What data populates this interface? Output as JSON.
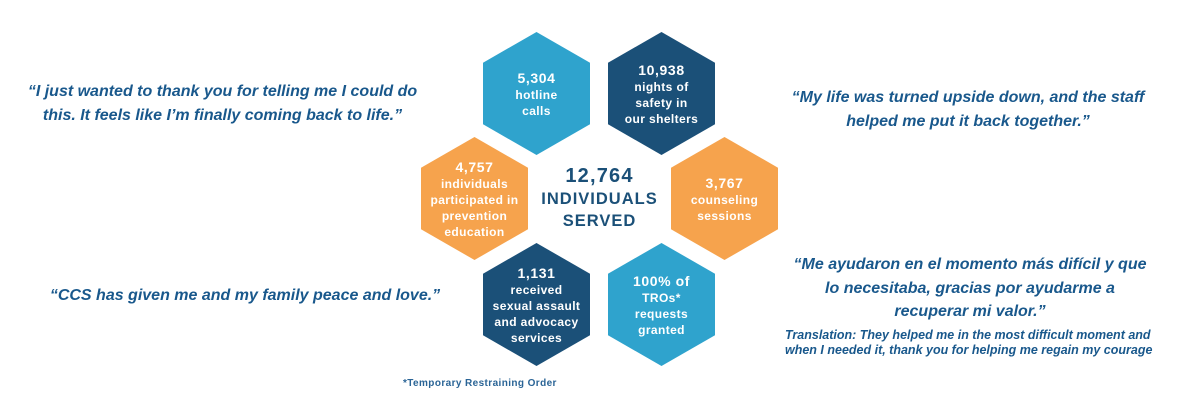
{
  "colors": {
    "background": "#FFFFFF",
    "light_blue": "#2FA3CD",
    "dark_blue": "#1B5078",
    "orange": "#F6A34D",
    "quote_text": "#19588C",
    "center_text": "#1B5078",
    "footnote_text": "#2A6496"
  },
  "center_label": {
    "total": "12,764",
    "lines": [
      "12,764",
      "INDIVIDUALS",
      "SERVED"
    ]
  },
  "hexagons": [
    {
      "name": "hotline-calls",
      "value": "5,304",
      "color": "light_blue",
      "lines": [
        "5,304",
        "hotline",
        "calls"
      ]
    },
    {
      "name": "nights-of-safety",
      "value": "10,938",
      "color": "dark_blue",
      "lines": [
        "10,938",
        "nights of",
        "safety in",
        "our shelters"
      ]
    },
    {
      "name": "prevention-education",
      "value": "4,757",
      "color": "orange",
      "lines": [
        "4,757",
        "individuals",
        "participated in",
        "prevention",
        "education"
      ]
    },
    {
      "name": "counseling-sessions",
      "value": "3,767",
      "color": "orange",
      "lines": [
        "3,767",
        "counseling",
        "sessions"
      ]
    },
    {
      "name": "sexual-assault-advocacy-services",
      "value": "1,131",
      "color": "dark_blue",
      "lines": [
        "1,131",
        "received",
        "sexual assault",
        "and advocacy",
        "services"
      ]
    },
    {
      "name": "tro-requests-granted",
      "value": "100%",
      "color": "light_blue",
      "lines": [
        "100% of",
        "TROs*",
        "requests",
        "granted"
      ]
    }
  ],
  "quotes": [
    {
      "lines": [
        "“I just wanted to thank you for telling me I could do",
        "this. It feels like I’m finally coming back to life.”"
      ]
    },
    {
      "lines": [
        "“My life was turned upside down, and the staff",
        "helped me put it back together.”"
      ]
    },
    {
      "lines": [
        "“CCS has given me and my family peace and love.”"
      ]
    },
    {
      "lines": [
        "“Me ayudaron en el momento más difícil y que",
        "lo necesitaba, gracias por ayudarme a",
        "recuperar mi valor.”"
      ],
      "translation_lines": [
        "Translation: They helped me in the most difficult moment and",
        "when I needed it, thank you for helping me regain my courage"
      ]
    }
  ],
  "footnote": "*Temporary Restraining Order"
}
